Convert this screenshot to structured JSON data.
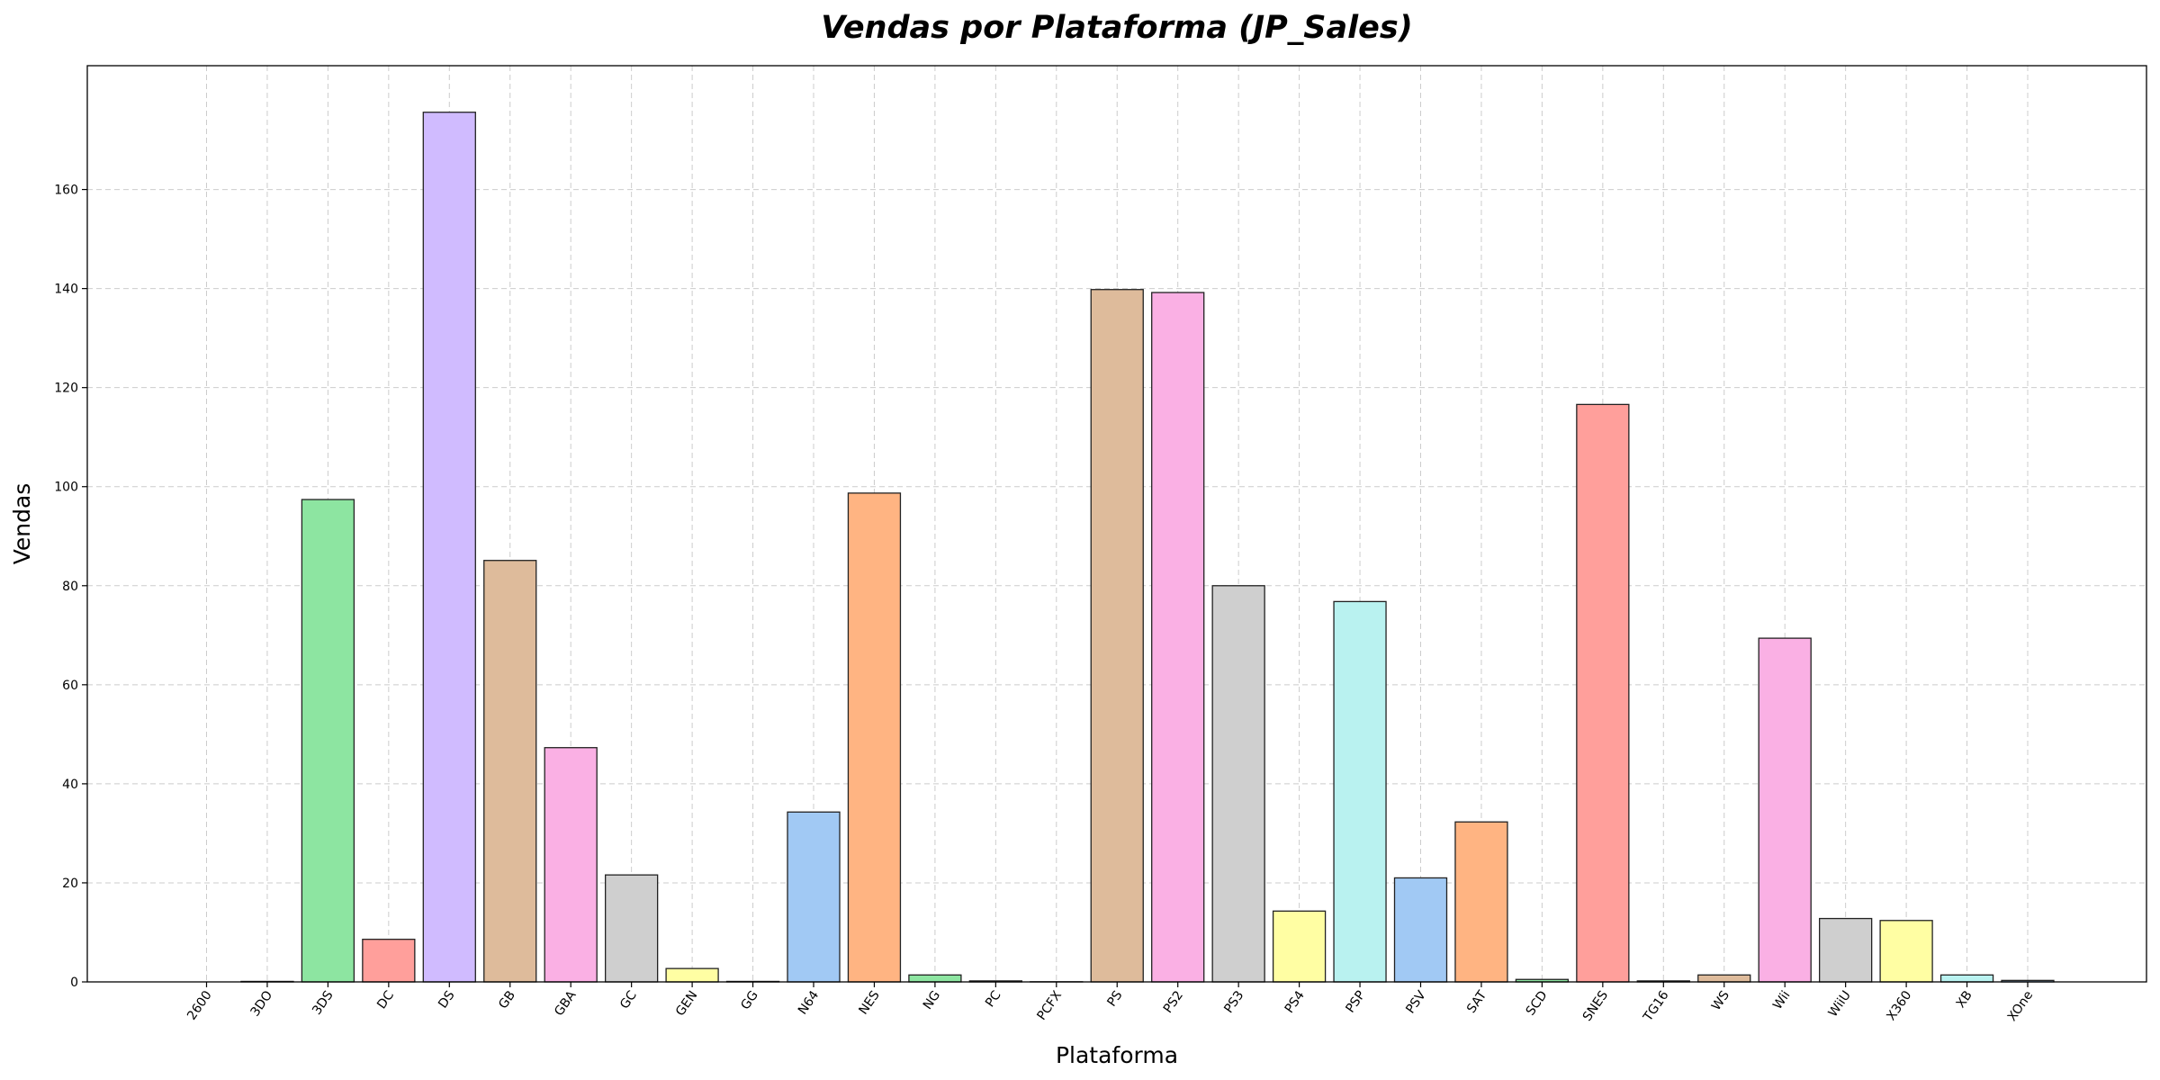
{
  "chart_data": {
    "type": "bar",
    "title": "Vendas por Plataforma (JP_Sales)",
    "xlabel": "Plataforma",
    "ylabel": "Vendas",
    "ylim": [
      0,
      185
    ],
    "yticks": [
      0,
      20,
      40,
      60,
      80,
      100,
      120,
      140,
      160
    ],
    "grid": true,
    "categories": [
      "2600",
      "3DO",
      "3DS",
      "DC",
      "DS",
      "GB",
      "GBA",
      "GC",
      "GEN",
      "GG",
      "N64",
      "NES",
      "NG",
      "PC",
      "PCFX",
      "PS",
      "PS2",
      "PS3",
      "PS4",
      "PSP",
      "PSV",
      "SAT",
      "SCD",
      "SNES",
      "TG16",
      "WS",
      "Wii",
      "WiiU",
      "X360",
      "XB",
      "XOne"
    ],
    "values": [
      0,
      0.1,
      97.4,
      8.6,
      175.6,
      85.1,
      47.3,
      21.6,
      2.7,
      0.1,
      34.3,
      98.7,
      1.4,
      0.2,
      0.03,
      139.8,
      139.2,
      80.0,
      14.3,
      76.8,
      21.0,
      32.3,
      0.5,
      116.6,
      0.2,
      1.4,
      69.4,
      12.8,
      12.4,
      1.4,
      0.3
    ],
    "colors": [
      "#8ec1da",
      "#ffb482",
      "#8de5a1",
      "#ff9f9b",
      "#d0bbff",
      "#debb9b",
      "#fab0e4",
      "#cfcfcf",
      "#fffea3",
      "#b9f2f0",
      "#a1c9f4",
      "#ffb482",
      "#8de5a1",
      "#ff9f9b",
      "#d0bbff",
      "#debb9b",
      "#fab0e4",
      "#cfcfcf",
      "#fffea3",
      "#b9f2f0",
      "#a1c9f4",
      "#ffb482",
      "#8de5a1",
      "#ff9f9b",
      "#d0bbff",
      "#debb9b",
      "#fab0e4",
      "#cfcfcf",
      "#fffea3",
      "#b9f2f0",
      "#a1c9f4"
    ]
  }
}
